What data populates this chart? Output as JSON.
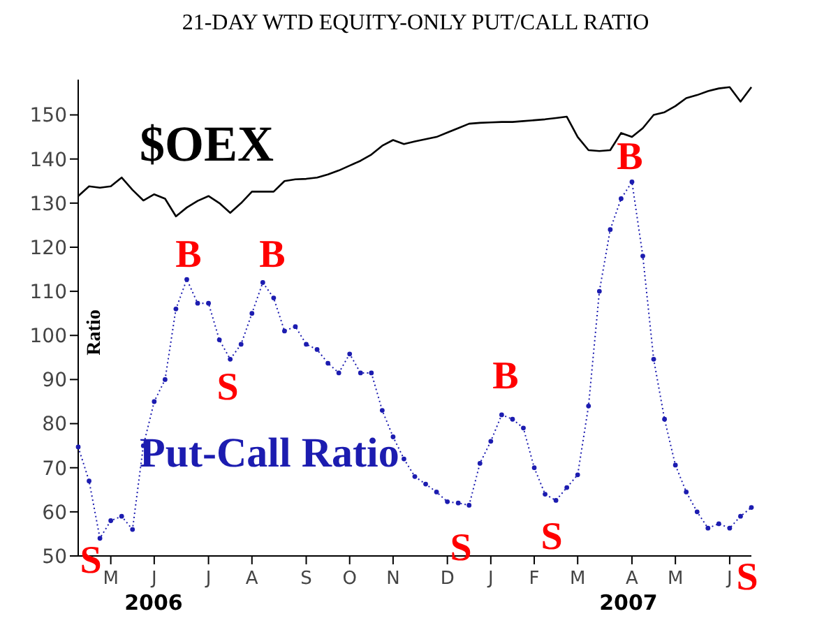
{
  "chart_data": {
    "type": "line",
    "title": "21-DAY WTD EQUITY-ONLY PUT/CALL RATIO",
    "ylabel": "Ratio",
    "categories": [
      null,
      null,
      null,
      "M",
      null,
      null,
      null,
      "J",
      null,
      null,
      null,
      null,
      "J",
      null,
      null,
      null,
      "A",
      null,
      null,
      null,
      null,
      "S",
      null,
      null,
      null,
      "O",
      null,
      null,
      null,
      "N",
      null,
      null,
      null,
      null,
      "D",
      null,
      null,
      null,
      "J",
      null,
      null,
      null,
      "F",
      null,
      null,
      null,
      "M",
      null,
      null,
      null,
      null,
      "A",
      null,
      null,
      null,
      "M",
      null,
      null,
      null,
      null,
      "J",
      null,
      null
    ],
    "ylim": [
      50,
      158
    ],
    "yticks": [
      50,
      60,
      70,
      80,
      90,
      100,
      110,
      120,
      130,
      140,
      150
    ],
    "grid": false,
    "legend": false,
    "series": [
      {
        "name": "$OEX",
        "color": "#000000",
        "line_style": "solid",
        "marker": "none",
        "values": [
          131.6,
          133.8,
          133.5,
          133.8,
          135.8,
          133,
          130.6,
          132,
          131,
          127,
          129,
          130.5,
          131.6,
          130,
          127.8,
          130,
          132.6,
          132.6,
          132.6,
          135,
          135.4,
          135.5,
          135.8,
          136.5,
          137.4,
          138.5,
          139.6,
          141,
          143,
          144.3,
          143.4,
          144,
          144.5,
          145,
          146,
          147,
          148,
          148.2,
          148.3,
          148.4,
          148.4,
          148.6,
          148.8,
          149,
          149.3,
          149.6,
          145,
          142,
          141.8,
          142,
          145.9,
          145,
          147,
          150,
          150.6,
          152,
          153.8,
          154.5,
          155.4,
          156,
          156.3,
          153,
          156.3
        ]
      },
      {
        "name": "Put-Call Ratio",
        "color": "#1c1cb0",
        "line_style": "dotted",
        "marker": "circle",
        "values": [
          74.7,
          67,
          54,
          58,
          59,
          56,
          75,
          85,
          90,
          106,
          112.7,
          107.3,
          107.3,
          99,
          94.6,
          98,
          105,
          112,
          108.5,
          101,
          102,
          98,
          96.8,
          93.7,
          91.5,
          95.8,
          91.5,
          91.5,
          83,
          77,
          72,
          68,
          66.3,
          64.5,
          62.3,
          62,
          61.5,
          71,
          76,
          82,
          81,
          79,
          70,
          64,
          62.6,
          65.5,
          68.4,
          84,
          110,
          124,
          131,
          134.8,
          118,
          94.6,
          81,
          70.6,
          64.5,
          60,
          56.3,
          57.3,
          56.3,
          59,
          61
        ]
      }
    ],
    "annotations": [
      "S",
      "B",
      "S",
      "B",
      "S",
      "B",
      "S",
      "B",
      "S",
      "2006",
      "2007"
    ]
  }
}
